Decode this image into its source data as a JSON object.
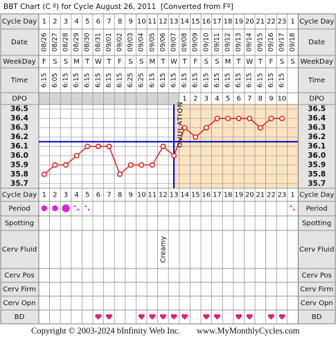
{
  "title": "BBT Chart (C º) for Cycle August 26, 2011  [Converted from Fº]",
  "row_labels": [
    "Cycle Day",
    "Date",
    "WeekDay",
    "Time",
    "DPO",
    "Cycle Day",
    "Period",
    "Spotting",
    "Cerv Fluid",
    "Cerv Pos",
    "Cerv Firm",
    "Cerv Opn",
    "BD"
  ],
  "chart_data": {
    "type": "line",
    "categories": [
      1,
      2,
      3,
      4,
      5,
      6,
      7,
      8,
      9,
      10,
      11,
      12,
      13,
      14,
      15,
      16,
      17,
      18,
      19,
      20,
      21,
      22,
      23,
      1
    ],
    "dates": [
      "08/26",
      "08/27",
      "08/28",
      "08/29",
      "08/30",
      "08/31",
      "09/01",
      "09/02",
      "09/03",
      "09/04",
      "09/05",
      "09/06",
      "09/07",
      "09/08",
      "09/09",
      "09/10",
      "09/11",
      "09/12",
      "09/13",
      "09/14",
      "09/15",
      "09/16",
      "09/17",
      "09/18"
    ],
    "weekdays": [
      "F",
      "S",
      "S",
      "M",
      "T",
      "W",
      "T",
      "F",
      "S",
      "S",
      "M",
      "T",
      "W",
      "T",
      "F",
      "S",
      "S",
      "M",
      "T",
      "W",
      "T",
      "F",
      "S",
      "S"
    ],
    "times": [
      "6:15",
      "6:05",
      "6:15",
      "6:15",
      "6:15",
      "6:15",
      "6:15",
      "6:15",
      "6:25",
      "6:25",
      "6:15",
      "6:15",
      "6:15",
      "6:15",
      "6:15",
      "6:15",
      "6:15",
      "6:15",
      "6:15",
      "6:15",
      "6:15",
      "6:15",
      "6:15",
      null
    ],
    "dpo": [
      null,
      null,
      null,
      null,
      null,
      null,
      null,
      null,
      null,
      null,
      null,
      null,
      null,
      1,
      2,
      3,
      4,
      5,
      6,
      7,
      8,
      9,
      10,
      null
    ],
    "values": [
      35.8,
      35.9,
      35.9,
      36.0,
      36.1,
      36.1,
      36.1,
      35.8,
      35.9,
      35.9,
      35.9,
      36.1,
      36.0,
      36.3,
      36.2,
      36.3,
      36.4,
      36.4,
      36.4,
      36.4,
      36.3,
      36.4,
      36.4,
      null
    ],
    "color": "#e00000",
    "ylim": [
      35.65,
      36.55
    ],
    "yticks": [
      36.5,
      36.4,
      36.3,
      36.2,
      36.1,
      {
        "value": 36,
        "label": "36.0"
      },
      35.9,
      35.8,
      35.7
    ],
    "grid": true,
    "coverline": {
      "value": 36.15,
      "color": "#0000cc"
    },
    "ovulation": {
      "label": "OVULATION",
      "day": 13,
      "color": "#0000cc",
      "shade": "#fde3bf"
    },
    "cervical_fluid": [
      null,
      null,
      null,
      null,
      null,
      null,
      null,
      null,
      null,
      null,
      null,
      "Creamy",
      null,
      null,
      null,
      null,
      null,
      null,
      null,
      null,
      null,
      null,
      null,
      null
    ]
  },
  "footer": {
    "copyright": "Copyright © 2003-2024 bInfinity Web Inc.",
    "site": "www.MyMonthlyCycles.com"
  }
}
